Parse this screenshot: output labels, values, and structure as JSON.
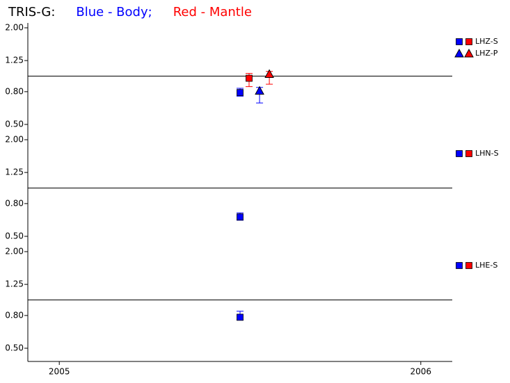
{
  "chart_data": [
    {
      "type": "scatter",
      "title": [
        {
          "text": "TRIS-G:",
          "color": "#000000"
        },
        {
          "text": "Blue - Body;",
          "color": "#0000ff"
        },
        {
          "text": "Red - Mantle",
          "color": "#ff0000"
        }
      ],
      "log_y": true,
      "ylim": [
        0.5,
        2.0
      ],
      "yticks": [
        {
          "value": 0.5,
          "label": "0.50"
        },
        {
          "value": 0.8,
          "label": "0.80"
        },
        {
          "value": 1.25,
          "label": "1.25"
        },
        {
          "value": 2.0,
          "label": "2.00"
        }
      ],
      "xlim": [
        2004.913,
        2006.087
      ],
      "reference_line": 1.0,
      "legend": [
        {
          "label": "LHZ-S",
          "marker": "square",
          "colors": [
            "#0000ff",
            "#ff0000"
          ]
        },
        {
          "label": "LHZ-P",
          "marker": "triangle",
          "colors": [
            "#0000ff",
            "#ff0000"
          ]
        }
      ],
      "series": [
        {
          "marker": "square",
          "color": "#0000ff",
          "x": [
            2005.5
          ],
          "values": [
            0.79
          ],
          "low": [
            0.75
          ],
          "high": [
            0.84
          ]
        },
        {
          "marker": "square",
          "color": "#ff0000",
          "x": [
            2005.525
          ],
          "values": [
            0.97
          ],
          "low": [
            0.86
          ],
          "high": [
            1.04
          ]
        },
        {
          "marker": "triangle",
          "color": "#0000ff",
          "x": [
            2005.554
          ],
          "values": [
            0.81
          ],
          "low": [
            0.68
          ],
          "high": [
            0.85
          ]
        },
        {
          "marker": "triangle",
          "color": "#ff0000",
          "x": [
            2005.581
          ],
          "values": [
            1.03
          ],
          "low": [
            0.89
          ],
          "high": [
            1.07
          ]
        }
      ]
    },
    {
      "type": "scatter",
      "log_y": true,
      "ylim": [
        0.5,
        2.0
      ],
      "yticks": [
        {
          "value": 0.5,
          "label": "0.50"
        },
        {
          "value": 0.8,
          "label": "0.80"
        },
        {
          "value": 1.25,
          "label": "1.25"
        },
        {
          "value": 2.0,
          "label": "2.00"
        }
      ],
      "xlim": [
        2004.913,
        2006.087
      ],
      "reference_line": 1.0,
      "legend": [
        {
          "label": "LHN-S",
          "marker": "square",
          "colors": [
            "#0000ff",
            "#ff0000"
          ]
        }
      ],
      "series": [
        {
          "marker": "square",
          "color": "#0000ff",
          "x": [
            2005.5
          ],
          "values": [
            0.66
          ],
          "low": [
            0.63
          ],
          "high": [
            0.7
          ]
        }
      ]
    },
    {
      "type": "scatter",
      "log_y": true,
      "ylim": [
        0.5,
        2.0
      ],
      "yticks": [
        {
          "value": 0.5,
          "label": "0.50"
        },
        {
          "value": 0.8,
          "label": "0.80"
        },
        {
          "value": 1.25,
          "label": "1.25"
        },
        {
          "value": 2.0,
          "label": "2.00"
        }
      ],
      "xlim": [
        2004.913,
        2006.087
      ],
      "reference_line": 1.0,
      "xticks": [
        {
          "value": 2005,
          "label": "2005"
        },
        {
          "value": 2006,
          "label": "2006"
        }
      ],
      "legend": [
        {
          "label": "LHE-S",
          "marker": "square",
          "colors": [
            "#0000ff",
            "#ff0000"
          ]
        }
      ],
      "series": [
        {
          "marker": "square",
          "color": "#0000ff",
          "x": [
            2005.5
          ],
          "values": [
            0.78
          ],
          "low": [
            0.75
          ],
          "high": [
            0.85
          ]
        }
      ]
    }
  ]
}
